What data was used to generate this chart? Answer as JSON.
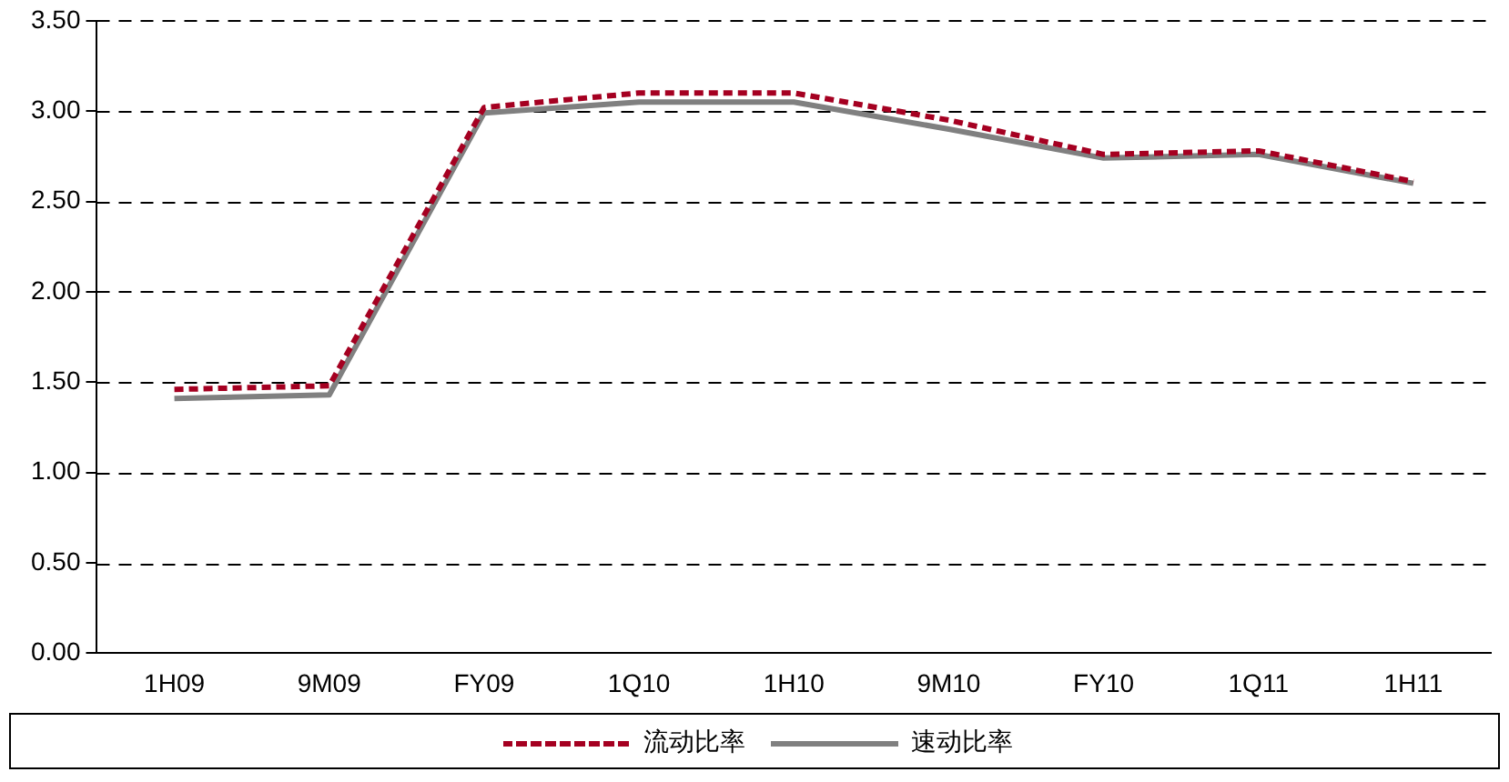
{
  "chart_data": {
    "type": "line",
    "categories": [
      "1H09",
      "9M09",
      "FY09",
      "1Q10",
      "1H10",
      "9M10",
      "FY10",
      "1Q11",
      "1H11"
    ],
    "series": [
      {
        "name": "流动比率",
        "color": "#a50021",
        "line_style": "dashed",
        "values": [
          1.46,
          1.48,
          3.02,
          3.1,
          3.1,
          2.95,
          2.76,
          2.78,
          2.61
        ]
      },
      {
        "name": "速动比率",
        "color": "#808080",
        "line_style": "solid",
        "values": [
          1.41,
          1.43,
          2.99,
          3.05,
          3.05,
          2.9,
          2.74,
          2.76,
          2.6
        ]
      }
    ],
    "ylim": [
      0,
      3.5
    ],
    "yticks": [
      {
        "value": 0,
        "label": "0.00"
      },
      {
        "value": 0.5,
        "label": "0.50"
      },
      {
        "value": 1,
        "label": "1.00"
      },
      {
        "value": 1.5,
        "label": "1.50"
      },
      {
        "value": 2,
        "label": "2.00"
      },
      {
        "value": 2.5,
        "label": "2.50"
      },
      {
        "value": 3,
        "label": "3.00"
      },
      {
        "value": 3.5,
        "label": "3.50"
      }
    ],
    "grid": "y",
    "legend": "bottom",
    "marker": "none"
  }
}
